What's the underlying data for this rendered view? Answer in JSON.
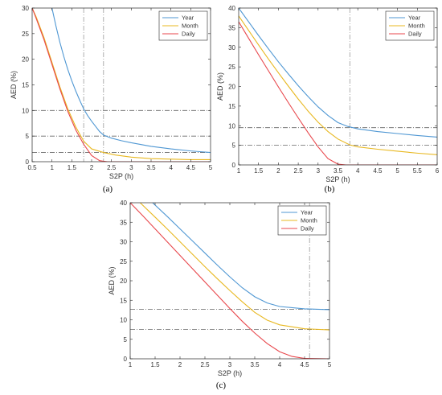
{
  "chart_data": [
    {
      "type": "line",
      "panel_label": "(a)",
      "xlabel": "S2P (h)",
      "ylabel": "AED (%)",
      "xlim": [
        0.5,
        5
      ],
      "ylim": [
        0,
        30
      ],
      "xticks": [
        0.5,
        1,
        1.5,
        2,
        2.5,
        3,
        3.5,
        4,
        4.5,
        5
      ],
      "xtick_labels": [
        "0.5",
        "1",
        "1.5",
        "2",
        "2.5",
        "3",
        "3.5",
        "4",
        "4.5",
        "5"
      ],
      "yticks": [
        0,
        5,
        10,
        15,
        20,
        25,
        30
      ],
      "ytick_labels": [
        "0",
        "5",
        "10",
        "15",
        "20",
        "25",
        "30"
      ],
      "legend_position": "top-right",
      "hlines": [
        10,
        5,
        1.8
      ],
      "vlines": [
        1.8,
        2.3
      ],
      "series": [
        {
          "name": "Year",
          "color": "#4f97d3",
          "points": [
            [
              1.0,
              30
            ],
            [
              1.1,
              26.5
            ],
            [
              1.2,
              23.3
            ],
            [
              1.3,
              20.5
            ],
            [
              1.4,
              18.0
            ],
            [
              1.5,
              15.8
            ],
            [
              1.6,
              13.8
            ],
            [
              1.7,
              12.0
            ],
            [
              1.8,
              10.3
            ],
            [
              1.9,
              9.0
            ],
            [
              2.0,
              7.9
            ],
            [
              2.1,
              6.9
            ],
            [
              2.2,
              5.9
            ],
            [
              2.3,
              5.2
            ],
            [
              2.5,
              4.6
            ],
            [
              2.75,
              4.1
            ],
            [
              3.0,
              3.7
            ],
            [
              3.5,
              3.0
            ],
            [
              4.0,
              2.5
            ],
            [
              4.5,
              2.1
            ],
            [
              5.0,
              1.8
            ]
          ]
        },
        {
          "name": "Month",
          "color": "#e8b820",
          "points": [
            [
              0.5,
              30
            ],
            [
              0.6,
              28.3
            ],
            [
              0.8,
              24.2
            ],
            [
              1.0,
              19.4
            ],
            [
              1.2,
              14.6
            ],
            [
              1.4,
              10.3
            ],
            [
              1.6,
              6.8
            ],
            [
              1.8,
              4.0
            ],
            [
              2.0,
              2.5
            ],
            [
              2.3,
              1.8
            ],
            [
              2.6,
              1.3
            ],
            [
              3.0,
              0.9
            ],
            [
              3.5,
              0.6
            ],
            [
              4.0,
              0.5
            ],
            [
              4.5,
              0.4
            ],
            [
              5.0,
              0.4
            ]
          ]
        },
        {
          "name": "Daily",
          "color": "#e8474c",
          "points": [
            [
              0.5,
              30
            ],
            [
              0.6,
              28.0
            ],
            [
              0.8,
              23.8
            ],
            [
              1.0,
              19.0
            ],
            [
              1.2,
              14.2
            ],
            [
              1.4,
              9.8
            ],
            [
              1.6,
              6.2
            ],
            [
              1.8,
              3.4
            ],
            [
              2.0,
              1.2
            ],
            [
              2.2,
              0.2
            ],
            [
              2.4,
              0
            ],
            [
              5.0,
              0
            ]
          ]
        }
      ]
    },
    {
      "type": "line",
      "panel_label": "(b)",
      "xlabel": "S2P (h)",
      "ylabel": "AED (%)",
      "xlim": [
        1,
        6
      ],
      "ylim": [
        0,
        40
      ],
      "xticks": [
        1,
        1.5,
        2,
        2.5,
        3,
        3.5,
        4,
        4.5,
        5,
        5.5,
        6
      ],
      "xtick_labels": [
        "1",
        "1.5",
        "2",
        "2.5",
        "3",
        "3.5",
        "4",
        "4.5",
        "5",
        "5.5",
        "6"
      ],
      "yticks": [
        0,
        5,
        10,
        15,
        20,
        25,
        30,
        35,
        40
      ],
      "ytick_labels": [
        "0",
        "5",
        "10",
        "15",
        "20",
        "25",
        "30",
        "35",
        "40"
      ],
      "legend_position": "top-right",
      "hlines": [
        9.5,
        5
      ],
      "vlines": [
        3.8
      ],
      "series": [
        {
          "name": "Year",
          "color": "#4f97d3",
          "points": [
            [
              1.0,
              40
            ],
            [
              1.25,
              36.5
            ],
            [
              1.5,
              33.0
            ],
            [
              1.75,
              29.6
            ],
            [
              2.0,
              26.3
            ],
            [
              2.25,
              23.2
            ],
            [
              2.5,
              20.2
            ],
            [
              2.75,
              17.4
            ],
            [
              3.0,
              14.8
            ],
            [
              3.25,
              12.6
            ],
            [
              3.5,
              10.8
            ],
            [
              3.75,
              9.8
            ],
            [
              4.0,
              9.2
            ],
            [
              4.5,
              8.5
            ],
            [
              5.0,
              8.0
            ],
            [
              5.5,
              7.5
            ],
            [
              6.0,
              7.1
            ]
          ]
        },
        {
          "name": "Month",
          "color": "#e8b820",
          "points": [
            [
              1.0,
              38
            ],
            [
              1.25,
              34.3
            ],
            [
              1.5,
              30.6
            ],
            [
              1.75,
              27.0
            ],
            [
              2.0,
              23.5
            ],
            [
              2.25,
              20.1
            ],
            [
              2.5,
              16.8
            ],
            [
              2.75,
              13.7
            ],
            [
              3.0,
              10.9
            ],
            [
              3.25,
              8.5
            ],
            [
              3.5,
              6.6
            ],
            [
              3.8,
              5.1
            ],
            [
              4.0,
              4.6
            ],
            [
              4.5,
              4.0
            ],
            [
              5.0,
              3.5
            ],
            [
              5.5,
              3.0
            ],
            [
              6.0,
              2.6
            ]
          ]
        },
        {
          "name": "Daily",
          "color": "#e8474c",
          "points": [
            [
              1.0,
              36.5
            ],
            [
              1.25,
              32.3
            ],
            [
              1.5,
              28.1
            ],
            [
              1.75,
              24.0
            ],
            [
              2.0,
              19.9
            ],
            [
              2.25,
              15.9
            ],
            [
              2.5,
              12.0
            ],
            [
              2.75,
              8.2
            ],
            [
              3.0,
              4.6
            ],
            [
              3.25,
              1.6
            ],
            [
              3.5,
              0.2
            ],
            [
              3.7,
              0
            ],
            [
              6.0,
              0
            ]
          ]
        }
      ]
    },
    {
      "type": "line",
      "panel_label": "(c)",
      "xlabel": "S2P (h)",
      "ylabel": "AED (%)",
      "xlim": [
        1,
        5
      ],
      "ylim": [
        0,
        40
      ],
      "xticks": [
        1,
        1.5,
        2,
        2.5,
        3,
        3.5,
        4,
        4.5,
        5
      ],
      "xtick_labels": [
        "1",
        "1.5",
        "2",
        "2.5",
        "3",
        "3.5",
        "4",
        "4.5",
        "5"
      ],
      "yticks": [
        0,
        5,
        10,
        15,
        20,
        25,
        30,
        35,
        40
      ],
      "ytick_labels": [
        "0",
        "5",
        "10",
        "15",
        "20",
        "25",
        "30",
        "35",
        "40"
      ],
      "legend_position": "top-right",
      "hlines": [
        12.7,
        7.5
      ],
      "vlines": [
        4.6
      ],
      "series": [
        {
          "name": "Year",
          "color": "#4f97d3",
          "points": [
            [
              1.45,
              40
            ],
            [
              1.75,
              36.4
            ],
            [
              2.0,
              33.3
            ],
            [
              2.25,
              30.2
            ],
            [
              2.5,
              27.1
            ],
            [
              2.75,
              24.0
            ],
            [
              3.0,
              21.0
            ],
            [
              3.25,
              18.2
            ],
            [
              3.5,
              15.9
            ],
            [
              3.75,
              14.3
            ],
            [
              4.0,
              13.4
            ],
            [
              4.5,
              12.8
            ],
            [
              5.0,
              12.6
            ]
          ]
        },
        {
          "name": "Month",
          "color": "#e8b820",
          "points": [
            [
              1.2,
              40
            ],
            [
              1.5,
              36.3
            ],
            [
              1.75,
              33.2
            ],
            [
              2.0,
              30.0
            ],
            [
              2.25,
              26.8
            ],
            [
              2.5,
              23.6
            ],
            [
              2.75,
              20.5
            ],
            [
              3.0,
              17.5
            ],
            [
              3.25,
              14.6
            ],
            [
              3.5,
              11.9
            ],
            [
              3.75,
              9.9
            ],
            [
              4.0,
              8.7
            ],
            [
              4.5,
              7.7
            ],
            [
              5.0,
              7.4
            ]
          ]
        },
        {
          "name": "Daily",
          "color": "#e8474c",
          "points": [
            [
              1.0,
              40
            ],
            [
              1.25,
              36.7
            ],
            [
              1.5,
              33.3
            ],
            [
              1.75,
              29.9
            ],
            [
              2.0,
              26.5
            ],
            [
              2.25,
              23.1
            ],
            [
              2.5,
              19.7
            ],
            [
              2.75,
              16.3
            ],
            [
              3.0,
              12.9
            ],
            [
              3.25,
              9.6
            ],
            [
              3.5,
              6.6
            ],
            [
              3.75,
              3.9
            ],
            [
              4.0,
              1.8
            ],
            [
              4.25,
              0.6
            ],
            [
              4.5,
              0.1
            ],
            [
              5.0,
              0
            ]
          ]
        }
      ]
    }
  ]
}
